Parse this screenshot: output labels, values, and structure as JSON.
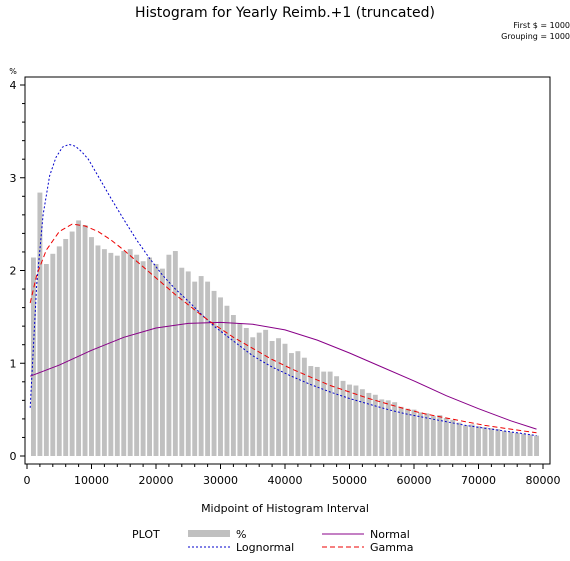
{
  "chart_data": {
    "type": "bar",
    "title": "Histogram for Yearly Reimb.+1 (truncated)",
    "notes": [
      "First $ = 1000",
      "Grouping = 1000"
    ],
    "xlabel": "Midpoint of Histogram Interval",
    "ylabel": "%",
    "xlim": [
      0,
      80000
    ],
    "ylim": [
      0,
      4
    ],
    "xticks": [
      0,
      10000,
      20000,
      30000,
      40000,
      50000,
      60000,
      70000,
      80000
    ],
    "yticks": [
      0,
      1,
      2,
      3,
      4
    ],
    "bar_width": 1000,
    "x": [
      1000,
      2000,
      3000,
      4000,
      5000,
      6000,
      7000,
      8000,
      9000,
      10000,
      11000,
      12000,
      13000,
      14000,
      15000,
      16000,
      17000,
      18000,
      19000,
      20000,
      21000,
      22000,
      23000,
      24000,
      25000,
      26000,
      27000,
      28000,
      29000,
      30000,
      31000,
      32000,
      33000,
      34000,
      35000,
      36000,
      37000,
      38000,
      39000,
      40000,
      41000,
      42000,
      43000,
      44000,
      45000,
      46000,
      47000,
      48000,
      49000,
      50000,
      51000,
      52000,
      53000,
      54000,
      55000,
      56000,
      57000,
      58000,
      59000,
      60000,
      61000,
      62000,
      63000,
      64000,
      65000,
      66000,
      67000,
      68000,
      69000,
      70000,
      71000,
      72000,
      73000,
      74000,
      75000,
      76000,
      77000,
      78000,
      79000
    ],
    "values": [
      2.14,
      2.84,
      2.07,
      2.18,
      2.26,
      2.34,
      2.42,
      2.54,
      2.49,
      2.36,
      2.27,
      2.23,
      2.19,
      2.16,
      2.21,
      2.23,
      2.17,
      2.1,
      2.14,
      2.07,
      2.02,
      2.17,
      2.21,
      2.03,
      1.99,
      1.88,
      1.94,
      1.88,
      1.78,
      1.71,
      1.62,
      1.52,
      1.43,
      1.38,
      1.28,
      1.33,
      1.36,
      1.24,
      1.27,
      1.21,
      1.11,
      1.13,
      1.06,
      0.97,
      0.96,
      0.91,
      0.91,
      0.86,
      0.81,
      0.77,
      0.76,
      0.72,
      0.68,
      0.66,
      0.61,
      0.6,
      0.58,
      0.53,
      0.51,
      0.5,
      0.47,
      0.46,
      0.43,
      0.44,
      0.41,
      0.39,
      0.36,
      0.33,
      0.34,
      0.32,
      0.31,
      0.3,
      0.29,
      0.27,
      0.26,
      0.25,
      0.24,
      0.23,
      0.22
    ],
    "bar_color": "#c0c0c0",
    "curves": [
      {
        "name": "Lognormal",
        "color": "#0000cc",
        "dash": "2,2",
        "x": [
          500,
          1500,
          2500,
          3500,
          4500,
          5500,
          6500,
          7500,
          8500,
          9500,
          11000,
          13000,
          15000,
          17000,
          19000,
          21000,
          23000,
          25000,
          27000,
          29000,
          32000,
          35000,
          38000,
          41000,
          44000,
          47000,
          50000,
          53000,
          56000,
          59000,
          62000,
          65000,
          68000,
          71000,
          74000,
          77000,
          79000
        ],
        "y": [
          0.52,
          1.85,
          2.6,
          3.02,
          3.22,
          3.33,
          3.36,
          3.34,
          3.28,
          3.2,
          3.02,
          2.78,
          2.55,
          2.33,
          2.13,
          1.95,
          1.8,
          1.67,
          1.53,
          1.4,
          1.24,
          1.08,
          0.96,
          0.86,
          0.77,
          0.69,
          0.62,
          0.56,
          0.5,
          0.45,
          0.41,
          0.37,
          0.33,
          0.3,
          0.27,
          0.24,
          0.22
        ]
      },
      {
        "name": "Normal",
        "color": "#880088",
        "dash": "",
        "x": [
          500,
          5000,
          10000,
          15000,
          20000,
          25000,
          30000,
          35000,
          40000,
          45000,
          50000,
          55000,
          60000,
          65000,
          70000,
          75000,
          79000
        ],
        "y": [
          0.86,
          0.98,
          1.14,
          1.28,
          1.38,
          1.43,
          1.44,
          1.42,
          1.36,
          1.25,
          1.11,
          0.96,
          0.81,
          0.65,
          0.51,
          0.38,
          0.29
        ]
      },
      {
        "name": "Gamma",
        "color": "#ee0000",
        "dash": "5,3",
        "x": [
          500,
          1500,
          3000,
          5000,
          7000,
          9000,
          11000,
          13000,
          15000,
          17000,
          19000,
          21000,
          23000,
          25000,
          27000,
          29000,
          32000,
          35000,
          38000,
          41000,
          44000,
          47000,
          50000,
          53000,
          56000,
          59000,
          62000,
          65000,
          68000,
          71000,
          74000,
          77000,
          79000
        ],
        "y": [
          1.65,
          1.95,
          2.22,
          2.42,
          2.5,
          2.48,
          2.42,
          2.33,
          2.22,
          2.1,
          1.98,
          1.86,
          1.74,
          1.63,
          1.52,
          1.42,
          1.28,
          1.16,
          1.04,
          0.94,
          0.85,
          0.76,
          0.69,
          0.62,
          0.56,
          0.5,
          0.45,
          0.41,
          0.37,
          0.33,
          0.3,
          0.27,
          0.25
        ]
      }
    ],
    "legend": {
      "heading": "PLOT",
      "items": [
        {
          "label": "%",
          "color": "#c0c0c0",
          "kind": "bar"
        },
        {
          "label": "Normal",
          "color": "#880088",
          "kind": "line",
          "dash": ""
        },
        {
          "label": "Lognormal",
          "color": "#0000cc",
          "kind": "line",
          "dash": "2,2"
        },
        {
          "label": "Gamma",
          "color": "#ee0000",
          "kind": "line",
          "dash": "5,3"
        }
      ]
    }
  }
}
